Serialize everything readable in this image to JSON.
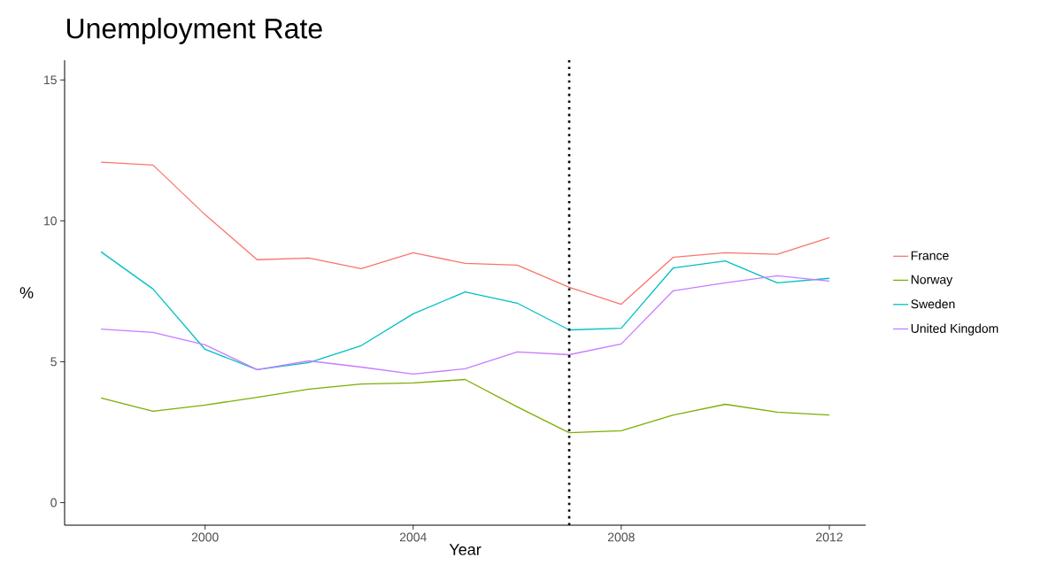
{
  "chart_data": {
    "type": "line",
    "title": "Unemployment Rate",
    "xlabel": "Year",
    "ylabel": "%",
    "x": [
      1998,
      1999,
      2000,
      2001,
      2002,
      2003,
      2004,
      2005,
      2006,
      2007,
      2008,
      2009,
      2010,
      2011,
      2012
    ],
    "series": [
      {
        "name": "France",
        "color": "#f8766d",
        "values": [
          12.08,
          11.98,
          10.22,
          8.62,
          8.68,
          8.3,
          8.87,
          8.49,
          8.43,
          7.64,
          7.04,
          8.71,
          8.87,
          8.81,
          9.4
        ]
      },
      {
        "name": "Norway",
        "color": "#7cae00",
        "values": [
          3.71,
          3.24,
          3.46,
          3.74,
          4.03,
          4.21,
          4.25,
          4.37,
          3.4,
          2.48,
          2.55,
          3.11,
          3.49,
          3.21,
          3.11
        ]
      },
      {
        "name": "Sweden",
        "color": "#00bfc4",
        "values": [
          8.9,
          7.58,
          5.44,
          4.72,
          4.97,
          5.57,
          6.7,
          7.48,
          7.08,
          6.13,
          6.19,
          8.33,
          8.58,
          7.8,
          7.96
        ]
      },
      {
        "name": "United Kingdom",
        "color": "#c77cff",
        "values": [
          6.16,
          6.04,
          5.6,
          4.72,
          5.03,
          4.81,
          4.56,
          4.75,
          5.35,
          5.25,
          5.63,
          7.52,
          7.8,
          8.05,
          7.86
        ]
      }
    ],
    "xlim": [
      1997.3,
      2012.7
    ],
    "ylim": [
      -0.8,
      15.7
    ],
    "xticks": [
      2000,
      2004,
      2008,
      2012
    ],
    "yticks": [
      0,
      5,
      10,
      15
    ],
    "ref_lines": [
      {
        "axis": "x",
        "value": 2007,
        "color": "#000000",
        "line_style": "dotted"
      }
    ],
    "grid": false,
    "legend": "right",
    "line_style": "solid"
  }
}
